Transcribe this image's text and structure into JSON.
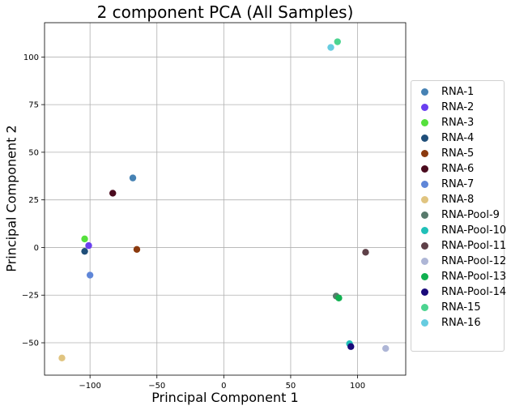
{
  "chart_data": {
    "type": "scatter",
    "title": "2 component PCA (All Samples)",
    "xlabel": "Principal Component 1",
    "ylabel": "Principal Component 2",
    "xlim": [
      -134,
      136
    ],
    "ylim": [
      -67,
      118
    ],
    "xticks": [
      -100,
      -50,
      0,
      50,
      100
    ],
    "yticks": [
      -50,
      -25,
      0,
      25,
      50,
      75,
      100
    ],
    "xtick_labels": [
      "−100",
      "−50",
      "0",
      "50",
      "100"
    ],
    "ytick_labels": [
      "−50",
      "−25",
      "0",
      "25",
      "50",
      "75",
      "100"
    ],
    "grid": true,
    "legend_position": "right",
    "series": [
      {
        "name": "RNA-1",
        "color": "#4682B4",
        "x": -68,
        "y": 36.5
      },
      {
        "name": "RNA-2",
        "color": "#6A3FF0",
        "x": -101,
        "y": 1
      },
      {
        "name": "RNA-3",
        "color": "#55E03C",
        "x": -104,
        "y": 4.5
      },
      {
        "name": "RNA-4",
        "color": "#1F4E79",
        "x": -104,
        "y": -2
      },
      {
        "name": "RNA-5",
        "color": "#8B3A0E",
        "x": -65,
        "y": -1
      },
      {
        "name": "RNA-6",
        "color": "#4A0A1E",
        "x": -83,
        "y": 28.5
      },
      {
        "name": "RNA-7",
        "color": "#5F86D8",
        "x": -100,
        "y": -14.5
      },
      {
        "name": "RNA-8",
        "color": "#E0C480",
        "x": -121,
        "y": -58
      },
      {
        "name": "RNA-Pool-9",
        "color": "#587A6C",
        "x": 84,
        "y": -25.5
      },
      {
        "name": "RNA-Pool-10",
        "color": "#20C0B8",
        "x": 94,
        "y": -50.5
      },
      {
        "name": "RNA-Pool-11",
        "color": "#5E4048",
        "x": 106,
        "y": -2.5
      },
      {
        "name": "RNA-Pool-12",
        "color": "#AEB6D6",
        "x": 121,
        "y": -53
      },
      {
        "name": "RNA-Pool-13",
        "color": "#10B050",
        "x": 86,
        "y": -26.5
      },
      {
        "name": "RNA-Pool-14",
        "color": "#1A0A7A",
        "x": 95,
        "y": -52
      },
      {
        "name": "RNA-15",
        "color": "#4CD490",
        "x": 85,
        "y": 108
      },
      {
        "name": "RNA-16",
        "color": "#66CCE0",
        "x": 80,
        "y": 105
      }
    ]
  }
}
